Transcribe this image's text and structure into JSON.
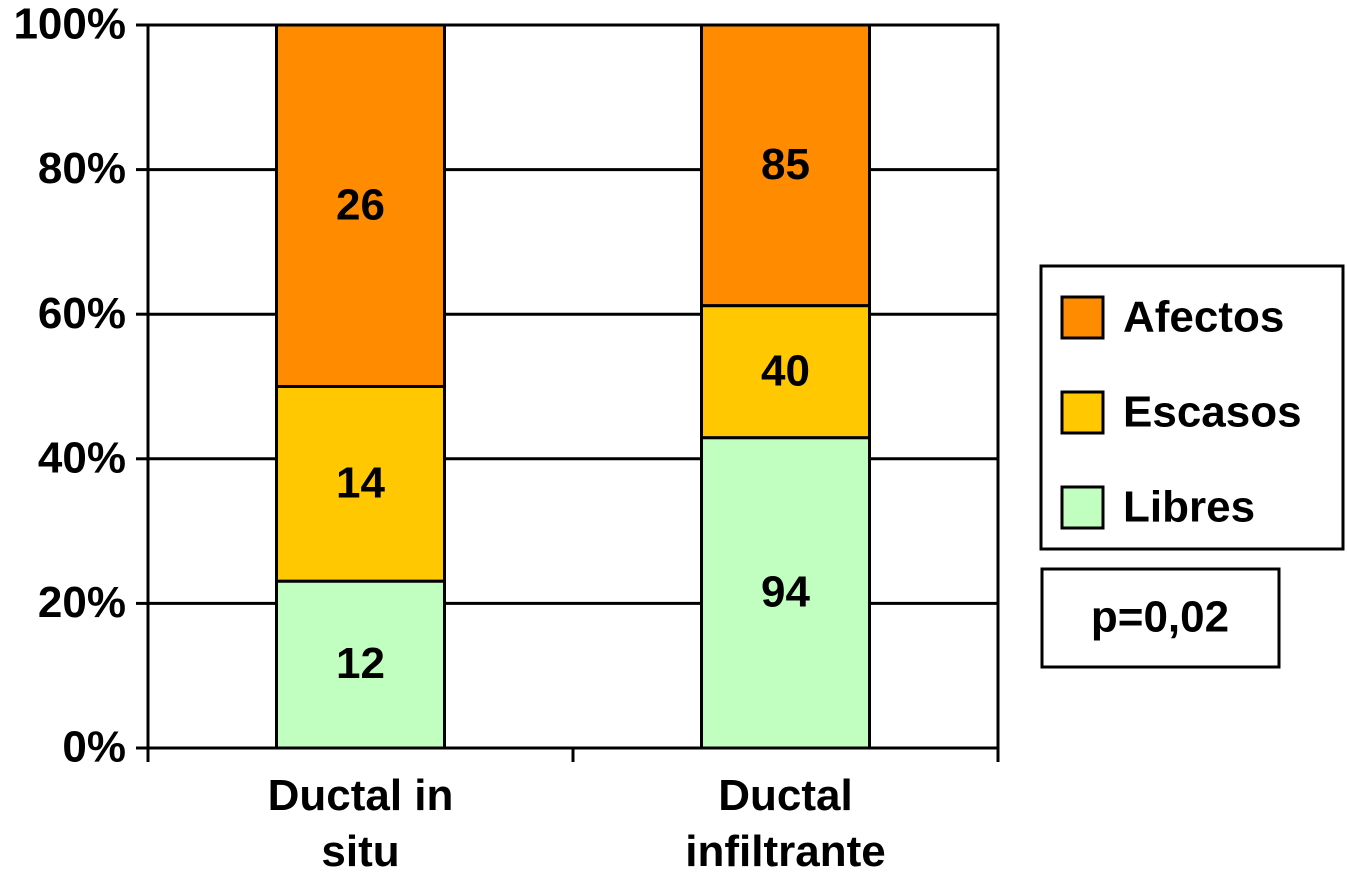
{
  "chart_data": {
    "type": "bar",
    "stacking": "percent",
    "categories": [
      "Ductal in situ",
      "Ductal infiltrante"
    ],
    "series": [
      {
        "name": "Libres",
        "color": "#c0ffc0",
        "values": [
          12,
          94
        ]
      },
      {
        "name": "Escasos",
        "color": "#ffc800",
        "values": [
          14,
          40
        ]
      },
      {
        "name": "Afectos",
        "color": "#ff8c00",
        "values": [
          26,
          85
        ]
      }
    ],
    "ylim": [
      0,
      100
    ],
    "yticks": [
      {
        "value": 0,
        "label": "0%"
      },
      {
        "value": 20,
        "label": "20%"
      },
      {
        "value": 40,
        "label": "40%"
      },
      {
        "value": 60,
        "label": "60%"
      },
      {
        "value": 80,
        "label": "80%"
      },
      {
        "value": 100,
        "label": "100%"
      }
    ],
    "grid": true,
    "legend": "right",
    "annotation": "p=0,02"
  }
}
